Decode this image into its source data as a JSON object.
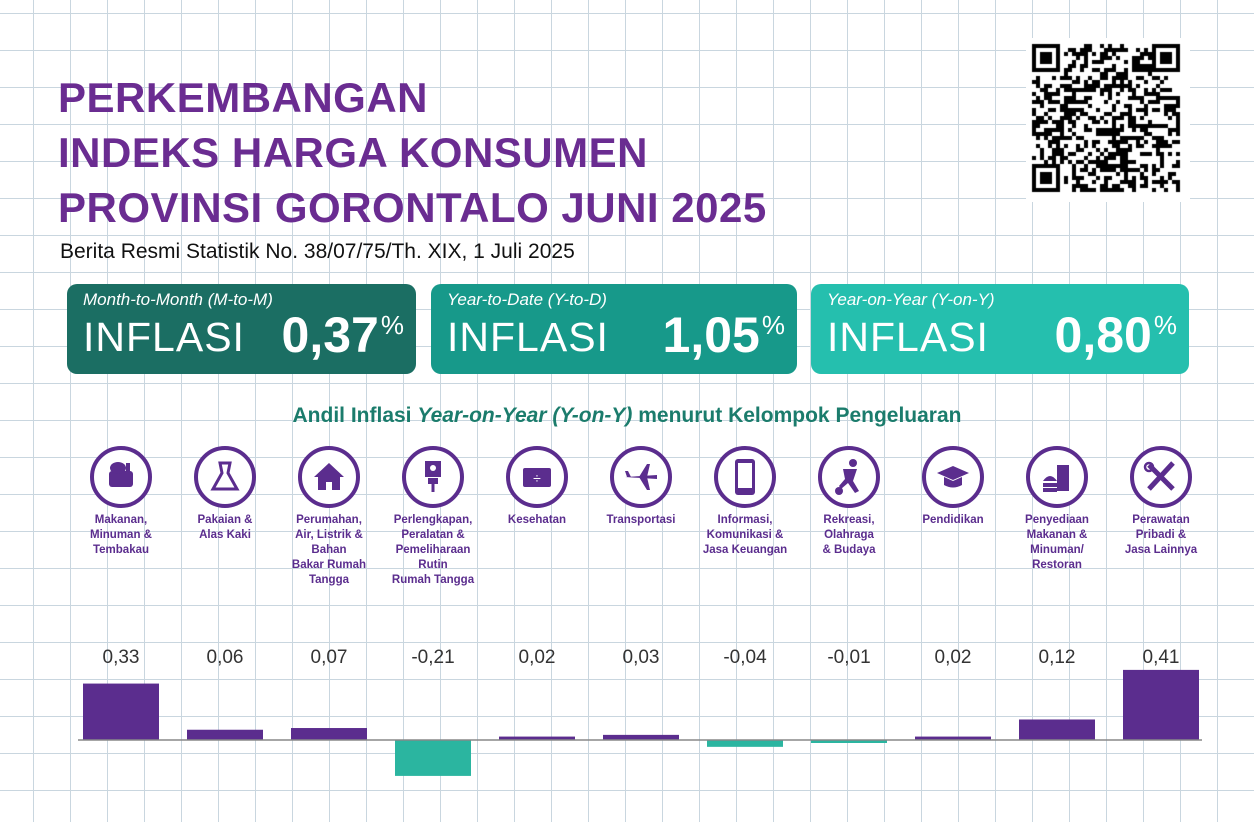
{
  "header": {
    "title_lines": [
      "PERKEMBANGAN",
      "INDEKS HARGA KONSUMEN",
      "PROVINSI GORONTALO JUNI 2025"
    ],
    "subtitle": "Berita Resmi Statistik No. 38/07/75/Th. XIX, 1 Juli 2025"
  },
  "cards": [
    {
      "label": "Month-to-Month (M-to-M)",
      "word": "INFLASI",
      "value": "0,37",
      "unit": "%",
      "color": "#1b6e63"
    },
    {
      "label": "Year-to-Date (Y-to-D)",
      "word": "INFLASI",
      "value": "1,05",
      "unit": "%",
      "color": "#17998a"
    },
    {
      "label": "Year-on-Year (Y-on-Y)",
      "word": "INFLASI",
      "value": "0,80",
      "unit": "%",
      "color": "#25bfae"
    }
  ],
  "colors": {
    "title": "#6a2c91",
    "positive_bar": "#5b2d8e",
    "negative_bar": "#2bb5a0",
    "chart_title": "#1b7c6c"
  },
  "chart_data": {
    "type": "bar",
    "title_prefix": "Andil Inflasi ",
    "title_italic": "Year-on-Year (Y-on-Y)",
    "title_suffix": " menurut Kelompok Pengeluaran",
    "categories": [
      "Makanan,\nMinuman &\nTembakau",
      "Pakaian &\nAlas Kaki",
      "Perumahan,\nAir, Listrik &\nBahan\nBakar Rumah\nTangga",
      "Perlengkapan,\nPeralatan &\nPemeliharaan\nRutin\nRumah Tangga",
      "Kesehatan",
      "Transportasi",
      "Informasi,\nKomunikasi &\nJasa Keuangan",
      "Rekreasi,\nOlahraga\n& Budaya",
      "Pendidikan",
      "Penyediaan\nMakanan &\nMinuman/\nRestoran",
      "Perawatan\nPribadi &\nJasa Lainnya"
    ],
    "icons": [
      "food-basket-icon",
      "dress-icon",
      "house-icon",
      "plug-icon",
      "medical-kit-icon",
      "airplane-icon",
      "smartphone-icon",
      "football-player-icon",
      "graduation-cap-icon",
      "fast-food-icon",
      "scissors-comb-icon"
    ],
    "values": [
      0.33,
      0.06,
      0.07,
      -0.21,
      0.02,
      0.03,
      -0.04,
      -0.01,
      0.02,
      0.12,
      0.41
    ],
    "value_labels": [
      "0,33",
      "0,06",
      "0,07",
      "-0,21",
      "0,02",
      "0,03",
      "-0,04",
      "-0,01",
      "0,02",
      "0,12",
      "0,41"
    ]
  }
}
